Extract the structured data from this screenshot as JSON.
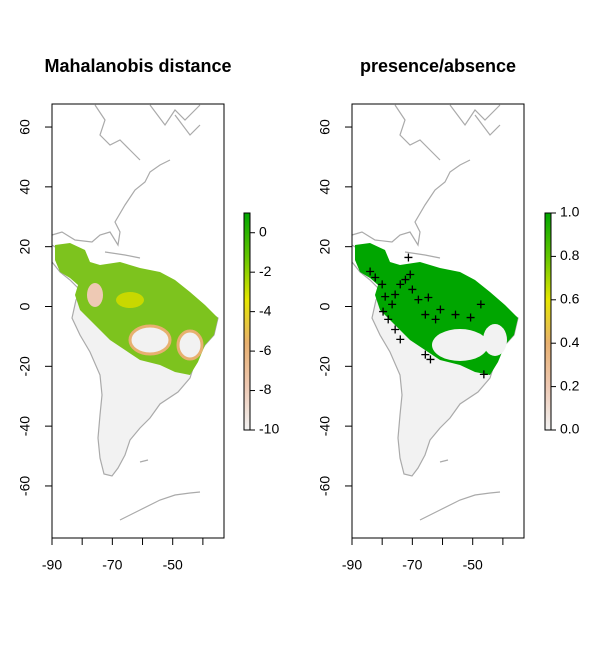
{
  "chart_data": [
    {
      "type": "raster",
      "title": "Mahalanobis distance",
      "xlim": [
        -90,
        -33
      ],
      "ylim": [
        -77.4,
        67.7
      ],
      "xticks": [
        -90,
        -70,
        -50
      ],
      "minor_xticks": [
        -80,
        -60,
        -40
      ],
      "yticks": [
        60,
        40,
        20,
        0,
        -20,
        -40,
        -60
      ],
      "colorbar": {
        "lim": [
          -10,
          1
        ],
        "ticks": [
          0,
          -2,
          -4,
          -6,
          -8,
          -10
        ],
        "colors": [
          "#f2f2f2",
          "#eec9b4",
          "#e8b070",
          "#e6e600",
          "#63c600",
          "#00a600"
        ]
      }
    },
    {
      "type": "raster",
      "title": "presence/absence",
      "xlim": [
        -90,
        -33
      ],
      "ylim": [
        -77.4,
        67.7
      ],
      "xticks": [
        -90,
        -70,
        -50
      ],
      "minor_xticks": [
        -80,
        -60,
        -40
      ],
      "yticks": [
        60,
        40,
        20,
        0,
        -20,
        -40,
        -60
      ],
      "colorbar": {
        "lim": [
          0,
          1
        ],
        "ticks": [
          {
            "value": 0,
            "label": "0.0"
          },
          0.2,
          0.4,
          0.6,
          0.8,
          {
            "value": 1,
            "label": "1.0"
          }
        ],
        "colors": [
          "#f2f2f2",
          "#eec9b4",
          "#e8b070",
          "#e6e600",
          "#63c600",
          "#00a600"
        ]
      },
      "points": {
        "color": "#000000",
        "x": [
          -84,
          -82.3,
          -80,
          -79,
          -79.7,
          -78,
          -76.7,
          -75.7,
          -74,
          -72.3,
          -70.7,
          -70,
          -68,
          -65.7,
          -64.7,
          -62.3,
          -60.7,
          -55.7,
          -50.7,
          -47.3,
          -74,
          -65.7,
          -64,
          -46.3,
          -71.3,
          -75.7
        ],
        "y": [
          11.7,
          9.7,
          7.4,
          3.3,
          -1.7,
          -4.3,
          0.7,
          4.0,
          7.4,
          9.0,
          10.7,
          5.7,
          2.3,
          -2.7,
          3.0,
          -4.3,
          -1.0,
          -2.7,
          -3.7,
          0.7,
          -11.0,
          -16.1,
          -17.7,
          -22.7,
          16.4,
          -7.7
        ]
      }
    }
  ]
}
